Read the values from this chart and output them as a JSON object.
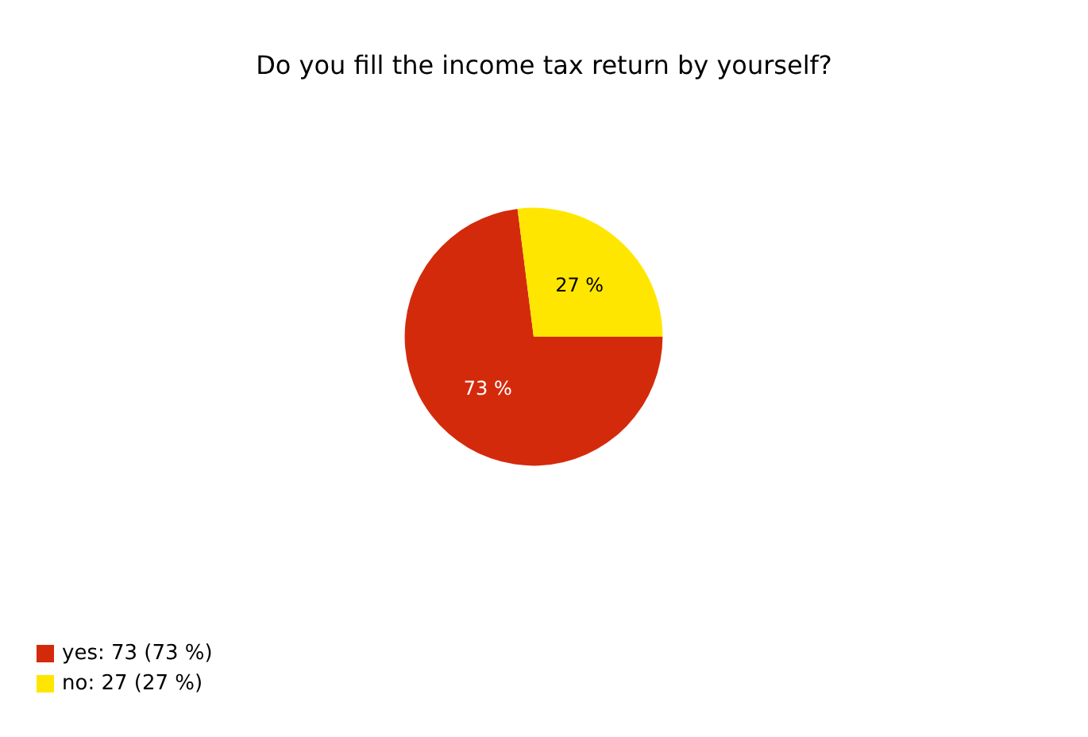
{
  "chart_data": {
    "type": "pie",
    "title": "Do you fill the income tax return by yourself?",
    "categories": [
      "yes: 73 (73 %)",
      "no: 27 (27 %)"
    ],
    "values": [
      73,
      27
    ],
    "colors": [
      "#d42a0c",
      "#ffe600"
    ],
    "value_labels": [
      "73 %",
      "27 %"
    ],
    "legend": "bottom left"
  }
}
